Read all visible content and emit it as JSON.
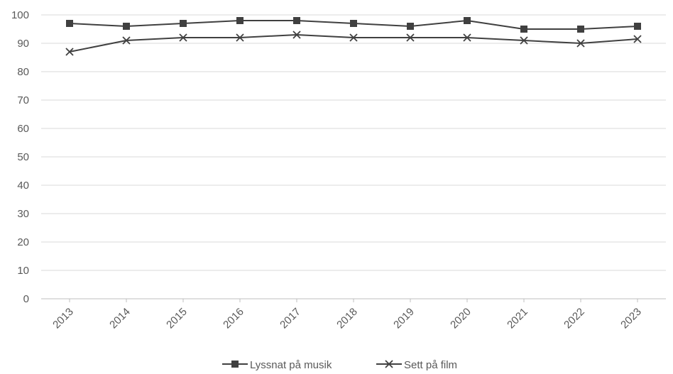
{
  "chart_data": {
    "type": "line",
    "title": "",
    "xlabel": "",
    "ylabel": "",
    "categories": [
      "2013",
      "2014",
      "2015",
      "2016",
      "2017",
      "2018",
      "2019",
      "2020",
      "2021",
      "2022",
      "2023"
    ],
    "ylim": [
      0,
      100
    ],
    "yticks": [
      0,
      10,
      20,
      30,
      40,
      50,
      60,
      70,
      80,
      90,
      100
    ],
    "grid": true,
    "legend_position": "bottom",
    "series": [
      {
        "name": "Lyssnat på musik",
        "marker": "square",
        "color": "#404040",
        "values": [
          97,
          96,
          97,
          98,
          98,
          97,
          96,
          98,
          95,
          95,
          96
        ]
      },
      {
        "name": "Sett på film",
        "marker": "x",
        "color": "#404040",
        "values": [
          87,
          91,
          92,
          92,
          93,
          92,
          92,
          92,
          91,
          90,
          91.5
        ]
      }
    ]
  }
}
